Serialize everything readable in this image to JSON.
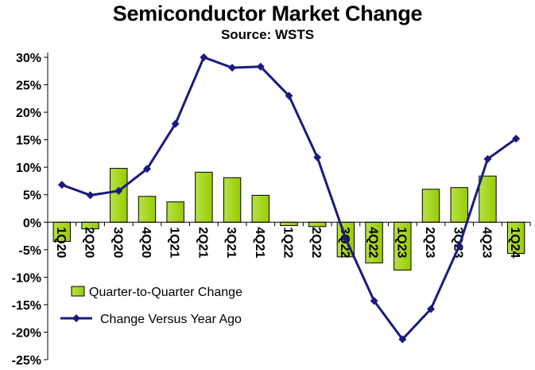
{
  "chart_data": {
    "type": "bar+line",
    "title": "Semiconductor Market Change",
    "subtitle": "Source: WSTS",
    "categories": [
      "1Q20",
      "2Q20",
      "3Q20",
      "4Q20",
      "1Q21",
      "2Q21",
      "3Q21",
      "4Q21",
      "1Q22",
      "2Q22",
      "3Q22",
      "4Q22",
      "1Q23",
      "2Q23",
      "3Q23",
      "4Q23",
      "1Q24"
    ],
    "series": [
      {
        "name": "Quarter-to-Quarter Change",
        "kind": "bar",
        "color": "#99cc00",
        "values": [
          -3.5,
          -1.2,
          9.8,
          4.7,
          3.7,
          9.1,
          8.1,
          4.9,
          -0.6,
          -0.8,
          -6.3,
          -7.4,
          -8.7,
          6.0,
          6.3,
          8.4,
          -5.7
        ]
      },
      {
        "name": "Change Versus Year Ago",
        "kind": "line",
        "color": "#1a1a80",
        "values": [
          6.8,
          4.9,
          5.7,
          9.7,
          17.9,
          30.0,
          28.1,
          28.3,
          23.0,
          11.8,
          -3.0,
          -14.3,
          -21.3,
          -15.8,
          -4.3,
          11.5,
          15.2
        ]
      }
    ],
    "ylim": [
      -25,
      30
    ],
    "yticks": [
      30,
      25,
      20,
      15,
      10,
      5,
      0,
      -5,
      -10,
      -15,
      -20,
      -25
    ],
    "ytick_labels": [
      "30%",
      "25%",
      "20%",
      "15%",
      "10%",
      "5%",
      "0%",
      "-5%",
      "-10%",
      "-15%",
      "-20%",
      "-25%"
    ],
    "grid": false,
    "legend_position": "lower-left"
  }
}
